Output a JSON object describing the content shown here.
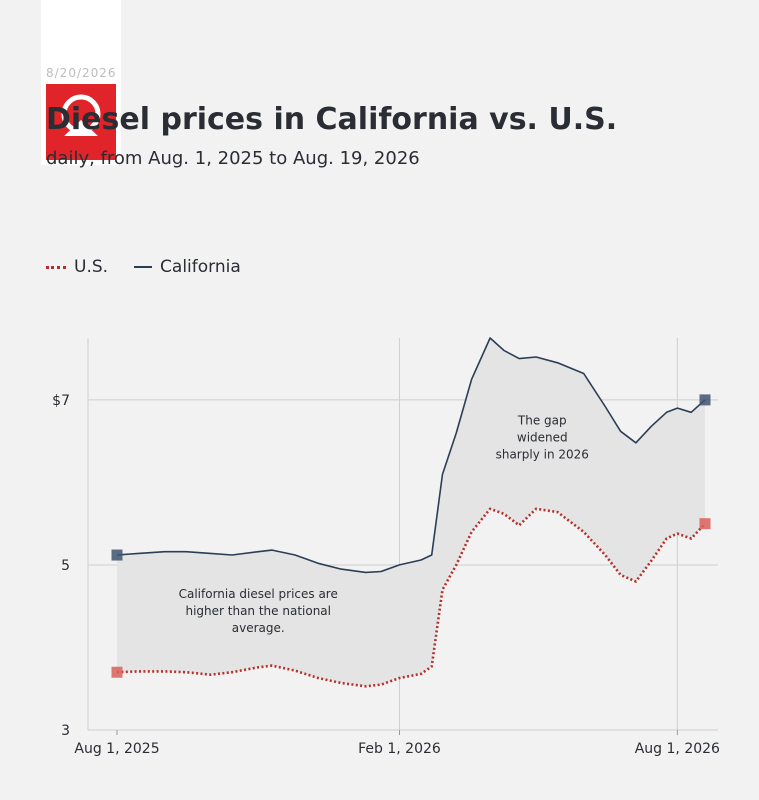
{
  "header": {
    "date_stamp": "8/20/2026",
    "title": "Diesel prices in California vs. U.S.",
    "subtitle": "daily, from Aug. 1, 2025 to Aug. 19, 2026",
    "logo_icon": "abc-news-logo-icon"
  },
  "legend": {
    "us_label": "U.S.",
    "ca_label": "California"
  },
  "colors": {
    "us": "#b5302b",
    "california": "#2c3e55",
    "gap_fill": "#e4e4e4",
    "grid": "#cfcfcf",
    "logo_red": "#e0242a"
  },
  "chart_data": {
    "type": "line",
    "x_axis": {
      "start": "2025-08-01",
      "end": "2026-08-19",
      "ticks": [
        {
          "date": "2025-08-01",
          "label": "Aug 1, 2025"
        },
        {
          "date": "2026-02-01",
          "label": "Feb 1, 2026"
        },
        {
          "date": "2026-08-01",
          "label": "Aug 1, 2026"
        }
      ]
    },
    "y_axis": {
      "ylim": [
        3,
        7.75
      ],
      "ticks": [
        {
          "value": 3,
          "label": "3"
        },
        {
          "value": 5,
          "label": "5"
        },
        {
          "value": 7,
          "label": "$7"
        }
      ]
    },
    "grid": true,
    "gap_shaded": true,
    "series": [
      {
        "name": "California",
        "style": "solid",
        "points": [
          [
            "2025-08-01",
            5.12
          ],
          [
            "2025-08-15",
            5.14
          ],
          [
            "2025-09-01",
            5.16
          ],
          [
            "2025-09-15",
            5.16
          ],
          [
            "2025-10-01",
            5.14
          ],
          [
            "2025-10-15",
            5.12
          ],
          [
            "2025-11-01",
            5.16
          ],
          [
            "2025-11-10",
            5.18
          ],
          [
            "2025-11-25",
            5.12
          ],
          [
            "2025-12-10",
            5.02
          ],
          [
            "2025-12-25",
            4.95
          ],
          [
            "2026-01-10",
            4.91
          ],
          [
            "2026-01-20",
            4.92
          ],
          [
            "2026-02-01",
            5.0
          ],
          [
            "2026-02-15",
            5.06
          ],
          [
            "2026-02-22",
            5.12
          ],
          [
            "2026-03-01",
            6.1
          ],
          [
            "2026-03-10",
            6.6
          ],
          [
            "2026-03-20",
            7.25
          ],
          [
            "2026-04-01",
            7.75
          ],
          [
            "2026-04-10",
            7.6
          ],
          [
            "2026-04-20",
            7.5
          ],
          [
            "2026-05-01",
            7.52
          ],
          [
            "2026-05-15",
            7.45
          ],
          [
            "2026-06-01",
            7.32
          ],
          [
            "2026-06-15",
            6.92
          ],
          [
            "2026-06-25",
            6.62
          ],
          [
            "2026-07-05",
            6.48
          ],
          [
            "2026-07-15",
            6.68
          ],
          [
            "2026-07-25",
            6.85
          ],
          [
            "2026-08-01",
            6.9
          ],
          [
            "2026-08-10",
            6.85
          ],
          [
            "2026-08-19",
            7.0
          ]
        ]
      },
      {
        "name": "U.S.",
        "style": "dotted",
        "points": [
          [
            "2025-08-01",
            3.7
          ],
          [
            "2025-08-15",
            3.71
          ],
          [
            "2025-09-01",
            3.71
          ],
          [
            "2025-09-15",
            3.7
          ],
          [
            "2025-10-01",
            3.67
          ],
          [
            "2025-10-15",
            3.7
          ],
          [
            "2025-11-01",
            3.76
          ],
          [
            "2025-11-10",
            3.78
          ],
          [
            "2025-11-25",
            3.72
          ],
          [
            "2025-12-10",
            3.63
          ],
          [
            "2025-12-25",
            3.57
          ],
          [
            "2026-01-10",
            3.53
          ],
          [
            "2026-01-20",
            3.55
          ],
          [
            "2026-02-01",
            3.63
          ],
          [
            "2026-02-15",
            3.68
          ],
          [
            "2026-02-22",
            3.77
          ],
          [
            "2026-03-01",
            4.7
          ],
          [
            "2026-03-10",
            5.0
          ],
          [
            "2026-03-20",
            5.4
          ],
          [
            "2026-04-01",
            5.68
          ],
          [
            "2026-04-10",
            5.62
          ],
          [
            "2026-04-20",
            5.48
          ],
          [
            "2026-05-01",
            5.68
          ],
          [
            "2026-05-15",
            5.64
          ],
          [
            "2026-06-01",
            5.4
          ],
          [
            "2026-06-15",
            5.12
          ],
          [
            "2026-06-25",
            4.88
          ],
          [
            "2026-07-05",
            4.8
          ],
          [
            "2026-07-15",
            5.05
          ],
          [
            "2026-07-25",
            5.32
          ],
          [
            "2026-08-01",
            5.38
          ],
          [
            "2026-08-10",
            5.32
          ],
          [
            "2026-08-19",
            5.5
          ]
        ]
      }
    ],
    "annotations": [
      {
        "lines": [
          "California diesel prices are",
          "higher than the national",
          "average."
        ],
        "anchor_date": "2025-11-01",
        "anchor_value": 4.6
      },
      {
        "lines": [
          "The gap",
          "widened",
          "sharply in 2026"
        ],
        "anchor_date": "2026-05-05",
        "anchor_value": 6.7
      }
    ]
  }
}
